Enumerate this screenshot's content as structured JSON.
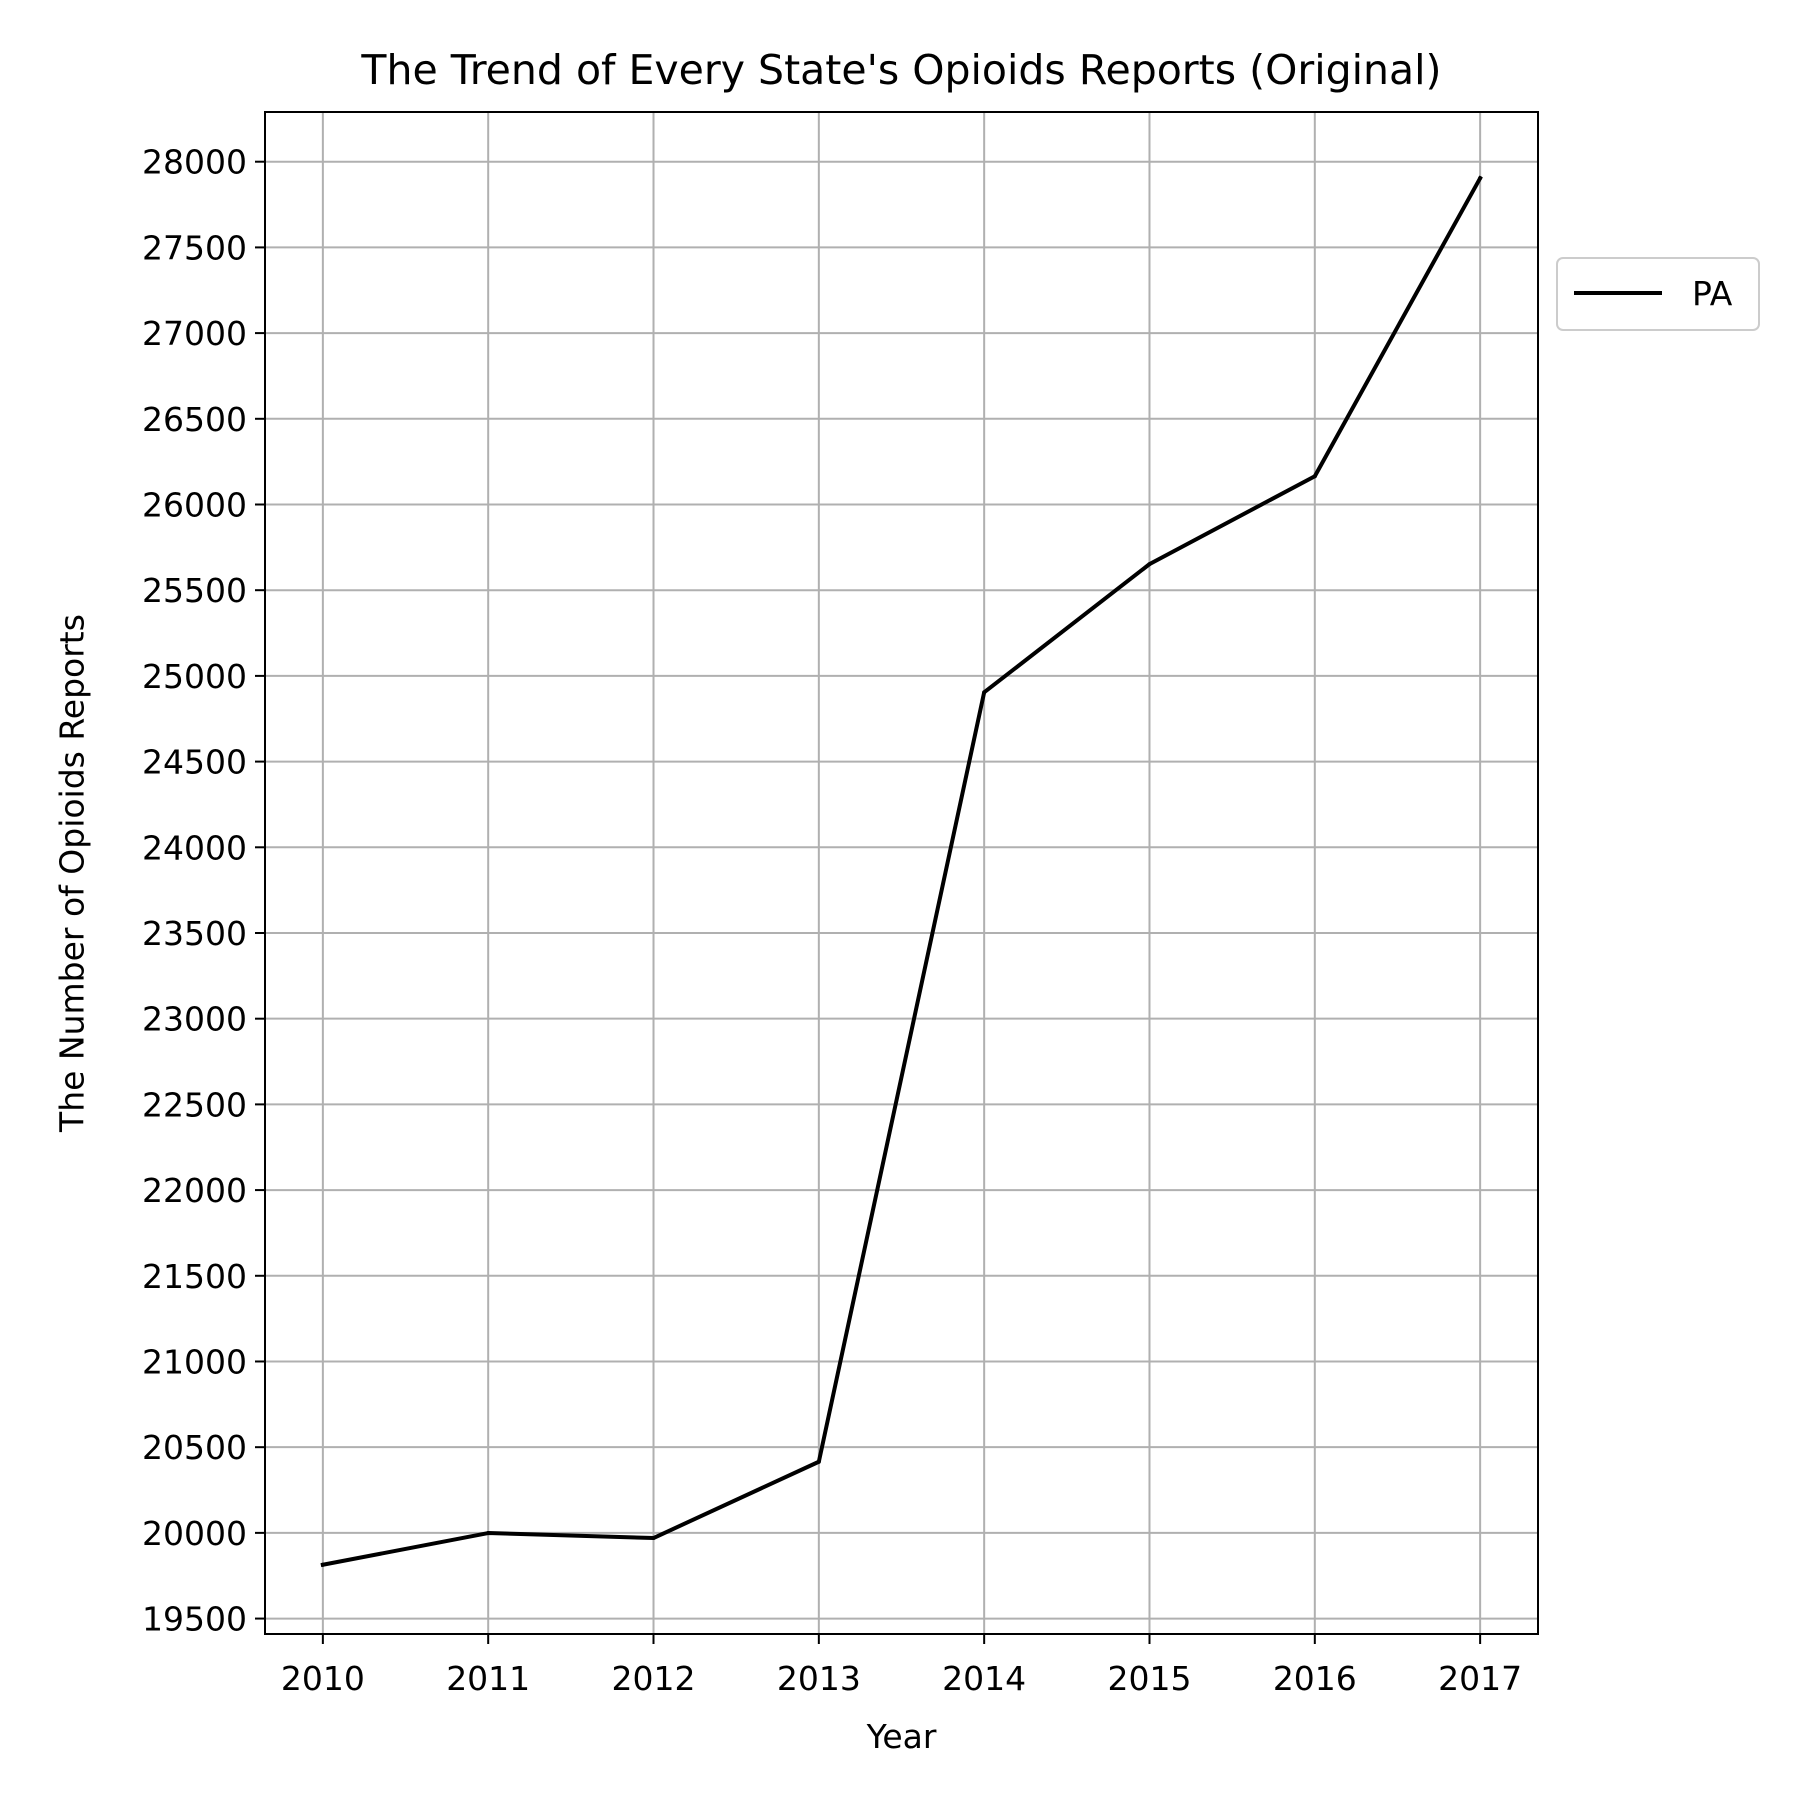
{
  "chart_data": {
    "type": "line",
    "title": "The Trend of Every State's Opioids Reports (Original)",
    "xlabel": "Year",
    "ylabel": "The Number of Opioids Reports",
    "x": [
      2010,
      2011,
      2012,
      2013,
      2014,
      2015,
      2016,
      2017
    ],
    "x_ticks": [
      "2010",
      "2011",
      "2012",
      "2013",
      "2014",
      "2015",
      "2016",
      "2017"
    ],
    "xlim": [
      2009.65,
      2017.35
    ],
    "y_ticks": [
      19500,
      20000,
      20500,
      21000,
      21500,
      22000,
      22500,
      23000,
      23500,
      24000,
      24500,
      25000,
      25500,
      26000,
      26500,
      27000,
      27500,
      28000
    ],
    "ylim": [
      19410,
      28290
    ],
    "series": [
      {
        "name": "PA",
        "color": "#000000",
        "values": [
          19814,
          19999,
          19970,
          20415,
          24904,
          25652,
          26165,
          27904
        ]
      }
    ],
    "grid": true,
    "legend_position": "right, outside the plot"
  }
}
